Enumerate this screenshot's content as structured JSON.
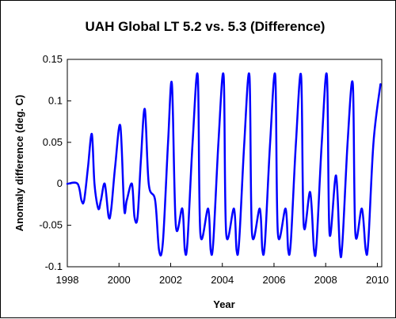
{
  "chart_data": {
    "type": "line",
    "title": "UAH Global LT 5.2 vs. 5.3 (Difference)",
    "xlabel": "Year",
    "ylabel": "Anomaly difference (deg. C)",
    "xlim": [
      1998,
      2010.17
    ],
    "ylim": [
      -0.1,
      0.15
    ],
    "xticks": [
      1998,
      2000,
      2002,
      2004,
      2006,
      2008,
      2010
    ],
    "xtick_labels": [
      "1998",
      "2000",
      "2002",
      "2004",
      "2006",
      "2008",
      "2010"
    ],
    "yticks": [
      -0.1,
      -0.05,
      0,
      0.05,
      0.1,
      0.15
    ],
    "ytick_labels": [
      "-0.1",
      "-0.05",
      "0",
      "0.05",
      "0.1",
      "0.15"
    ],
    "grid": false,
    "legend": "none",
    "series": [
      {
        "color": "#0000ff",
        "x": [
          1998.0,
          1998.4,
          1998.55,
          1998.65,
          1998.8,
          1998.95,
          1999.05,
          1999.2,
          1999.3,
          1999.45,
          1999.6,
          1999.7,
          1999.85,
          2000.05,
          2000.2,
          2000.3,
          2000.5,
          2000.6,
          2000.72,
          2000.85,
          2001.0,
          2001.15,
          2001.4,
          2001.55,
          2001.7,
          2001.9,
          2002.05,
          2002.2,
          2002.45,
          2002.55,
          2002.65,
          2002.85,
          2003.05,
          2003.15,
          2003.45,
          2003.55,
          2003.65,
          2003.85,
          2004.05,
          2004.15,
          2004.45,
          2004.55,
          2004.65,
          2004.85,
          2005.05,
          2005.15,
          2005.45,
          2005.55,
          2005.65,
          2005.85,
          2006.05,
          2006.15,
          2006.45,
          2006.55,
          2006.65,
          2006.85,
          2007.05,
          2007.15,
          2007.4,
          2007.55,
          2007.65,
          2007.85,
          2008.05,
          2008.15,
          2008.4,
          2008.55,
          2008.65,
          2008.85,
          2009.05,
          2009.15,
          2009.4,
          2009.55,
          2009.65,
          2009.85,
          2010.12
        ],
        "y": [
          0.0,
          0.0,
          -0.02,
          -0.02,
          0.02,
          0.06,
          0.0,
          -0.03,
          -0.02,
          0.0,
          -0.04,
          -0.03,
          0.02,
          0.07,
          -0.03,
          -0.02,
          0.0,
          -0.04,
          -0.04,
          0.03,
          0.09,
          0.0,
          -0.02,
          -0.08,
          -0.07,
          0.05,
          0.12,
          -0.05,
          -0.03,
          -0.08,
          -0.07,
          0.05,
          0.13,
          -0.06,
          -0.03,
          -0.08,
          -0.07,
          0.05,
          0.13,
          -0.06,
          -0.03,
          -0.08,
          -0.07,
          0.05,
          0.13,
          -0.06,
          -0.03,
          -0.08,
          -0.07,
          0.05,
          0.13,
          -0.06,
          -0.03,
          -0.08,
          -0.07,
          0.05,
          0.13,
          -0.05,
          -0.01,
          -0.08,
          -0.07,
          0.05,
          0.13,
          -0.06,
          0.01,
          -0.08,
          -0.07,
          0.05,
          0.12,
          -0.06,
          -0.03,
          -0.08,
          -0.07,
          0.05,
          0.12
        ]
      }
    ]
  }
}
